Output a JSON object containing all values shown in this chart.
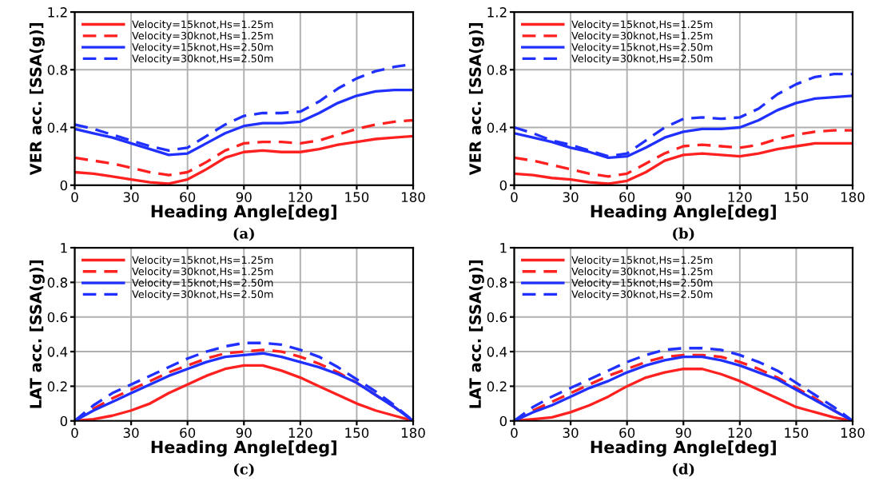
{
  "chart_data": [
    {
      "type": "line",
      "xlabel": "Heading Angle[deg]",
      "ylabel": "VER acc. [SSA(g)]",
      "annotations": [
        "(a)"
      ],
      "xlim": [
        0,
        180
      ],
      "xticks": [
        0,
        30,
        60,
        90,
        120,
        150,
        180
      ],
      "ylim": [
        0,
        1.2
      ],
      "yticks": [
        0,
        0.4,
        0.8,
        1.2
      ],
      "grid": true,
      "legend": "top left",
      "x": [
        0,
        10,
        20,
        30,
        40,
        50,
        60,
        70,
        80,
        90,
        100,
        110,
        120,
        130,
        140,
        150,
        160,
        170,
        180
      ],
      "series": [
        {
          "name": "Velocity=15knot,Hs=1.25m",
          "color": "#ff2020",
          "line_style": "solid",
          "values": [
            0.09,
            0.08,
            0.06,
            0.04,
            0.02,
            0.01,
            0.04,
            0.11,
            0.19,
            0.23,
            0.24,
            0.23,
            0.23,
            0.25,
            0.28,
            0.3,
            0.32,
            0.33,
            0.34
          ]
        },
        {
          "name": "Velocity=30knot,Hs=1.25m",
          "color": "#ff2020",
          "line_style": "dashed",
          "values": [
            0.19,
            0.17,
            0.15,
            0.12,
            0.09,
            0.07,
            0.09,
            0.16,
            0.24,
            0.29,
            0.3,
            0.3,
            0.29,
            0.31,
            0.35,
            0.39,
            0.42,
            0.44,
            0.45
          ]
        },
        {
          "name": "Velocity=15knot,Hs=2.50m",
          "color": "#2030ff",
          "line_style": "solid",
          "values": [
            0.39,
            0.36,
            0.33,
            0.29,
            0.25,
            0.21,
            0.22,
            0.29,
            0.36,
            0.41,
            0.43,
            0.43,
            0.44,
            0.5,
            0.57,
            0.62,
            0.65,
            0.66,
            0.66
          ]
        },
        {
          "name": "Velocity=30knot,Hs=2.50m",
          "color": "#2030ff",
          "line_style": "dashed",
          "values": [
            0.42,
            0.39,
            0.35,
            0.31,
            0.27,
            0.24,
            0.26,
            0.34,
            0.42,
            0.48,
            0.5,
            0.5,
            0.51,
            0.58,
            0.67,
            0.74,
            0.79,
            0.82,
            0.84
          ]
        }
      ]
    },
    {
      "type": "line",
      "xlabel": "Heading Angle[deg]",
      "ylabel": "VER acc. [SSA(g)]",
      "annotations": [
        "(b)"
      ],
      "xlim": [
        0,
        180
      ],
      "xticks": [
        0,
        30,
        60,
        90,
        120,
        150,
        180
      ],
      "ylim": [
        0,
        1.2
      ],
      "yticks": [
        0,
        0.4,
        0.8,
        1.2
      ],
      "grid": true,
      "legend": "top left",
      "x": [
        0,
        10,
        20,
        30,
        40,
        50,
        60,
        70,
        80,
        90,
        100,
        110,
        120,
        130,
        140,
        150,
        160,
        170,
        180
      ],
      "series": [
        {
          "name": "Velocity=15knot,Hs=1.25m",
          "color": "#ff2020",
          "line_style": "solid",
          "values": [
            0.08,
            0.07,
            0.05,
            0.04,
            0.02,
            0.01,
            0.03,
            0.09,
            0.17,
            0.21,
            0.22,
            0.21,
            0.2,
            0.22,
            0.25,
            0.27,
            0.29,
            0.29,
            0.29
          ]
        },
        {
          "name": "Velocity=30knot,Hs=1.25m",
          "color": "#ff2020",
          "line_style": "dashed",
          "values": [
            0.19,
            0.17,
            0.14,
            0.11,
            0.08,
            0.06,
            0.08,
            0.15,
            0.22,
            0.27,
            0.28,
            0.27,
            0.26,
            0.28,
            0.32,
            0.35,
            0.37,
            0.38,
            0.38
          ]
        },
        {
          "name": "Velocity=15knot,Hs=2.50m",
          "color": "#2030ff",
          "line_style": "solid",
          "values": [
            0.36,
            0.33,
            0.3,
            0.26,
            0.23,
            0.19,
            0.2,
            0.26,
            0.33,
            0.37,
            0.39,
            0.39,
            0.4,
            0.45,
            0.52,
            0.57,
            0.6,
            0.61,
            0.62
          ]
        },
        {
          "name": "Velocity=30knot,Hs=2.50m",
          "color": "#2030ff",
          "line_style": "dashed",
          "values": [
            0.4,
            0.36,
            0.31,
            0.28,
            0.24,
            0.2,
            0.22,
            0.31,
            0.4,
            0.46,
            0.47,
            0.46,
            0.47,
            0.53,
            0.63,
            0.7,
            0.75,
            0.77,
            0.77
          ]
        }
      ]
    },
    {
      "type": "line",
      "xlabel": "Heading Angle[deg]",
      "ylabel": "LAT acc. [SSA(g)]",
      "annotations": [
        "(c)"
      ],
      "xlim": [
        0,
        180
      ],
      "xticks": [
        0,
        30,
        60,
        90,
        120,
        150,
        180
      ],
      "ylim": [
        0,
        1
      ],
      "yticks": [
        0,
        0.2,
        0.4,
        0.6,
        0.8,
        1
      ],
      "grid": true,
      "legend": "top left",
      "x": [
        0,
        10,
        20,
        30,
        40,
        50,
        60,
        70,
        80,
        90,
        100,
        110,
        120,
        130,
        140,
        150,
        160,
        170,
        180
      ],
      "series": [
        {
          "name": "Velocity=15knot,Hs=1.25m",
          "color": "#ff2020",
          "line_style": "solid",
          "values": [
            0,
            0.01,
            0.03,
            0.06,
            0.1,
            0.16,
            0.21,
            0.26,
            0.3,
            0.32,
            0.32,
            0.29,
            0.25,
            0.2,
            0.15,
            0.1,
            0.06,
            0.03,
            0
          ]
        },
        {
          "name": "Velocity=30knot,Hs=1.25m",
          "color": "#ff2020",
          "line_style": "dashed",
          "values": [
            0,
            0.07,
            0.13,
            0.18,
            0.23,
            0.28,
            0.32,
            0.36,
            0.39,
            0.4,
            0.41,
            0.4,
            0.37,
            0.33,
            0.28,
            0.22,
            0.15,
            0.08,
            0
          ]
        },
        {
          "name": "Velocity=15knot,Hs=2.50m",
          "color": "#2030ff",
          "line_style": "solid",
          "values": [
            0,
            0.06,
            0.11,
            0.16,
            0.21,
            0.26,
            0.3,
            0.34,
            0.37,
            0.38,
            0.39,
            0.37,
            0.34,
            0.31,
            0.27,
            0.22,
            0.15,
            0.08,
            0
          ]
        },
        {
          "name": "Velocity=30knot,Hs=2.50m",
          "color": "#2030ff",
          "line_style": "dashed",
          "values": [
            0,
            0.09,
            0.16,
            0.21,
            0.26,
            0.31,
            0.36,
            0.4,
            0.43,
            0.45,
            0.45,
            0.44,
            0.41,
            0.37,
            0.31,
            0.24,
            0.17,
            0.09,
            0
          ]
        }
      ]
    },
    {
      "type": "line",
      "xlabel": "Heading Angle[deg]",
      "ylabel": "LAT acc. [SSA(g)]",
      "annotations": [
        "(d)"
      ],
      "xlim": [
        0,
        180
      ],
      "xticks": [
        0,
        30,
        60,
        90,
        120,
        150,
        180
      ],
      "ylim": [
        0,
        1
      ],
      "yticks": [
        0,
        0.2,
        0.4,
        0.6,
        0.8,
        1
      ],
      "grid": true,
      "legend": "top left",
      "x": [
        0,
        10,
        20,
        30,
        40,
        50,
        60,
        70,
        80,
        90,
        100,
        110,
        120,
        130,
        140,
        150,
        160,
        170,
        180
      ],
      "series": [
        {
          "name": "Velocity=15knot,Hs=1.25m",
          "color": "#ff2020",
          "line_style": "solid",
          "values": [
            0,
            0.01,
            0.02,
            0.05,
            0.09,
            0.14,
            0.2,
            0.25,
            0.28,
            0.3,
            0.3,
            0.27,
            0.23,
            0.18,
            0.13,
            0.08,
            0.05,
            0.02,
            0
          ]
        },
        {
          "name": "Velocity=30knot,Hs=1.25m",
          "color": "#ff2020",
          "line_style": "dashed",
          "values": [
            0,
            0.06,
            0.11,
            0.16,
            0.21,
            0.26,
            0.3,
            0.34,
            0.37,
            0.38,
            0.38,
            0.37,
            0.34,
            0.3,
            0.25,
            0.19,
            0.13,
            0.06,
            0
          ]
        },
        {
          "name": "Velocity=15knot,Hs=2.50m",
          "color": "#2030ff",
          "line_style": "solid",
          "values": [
            0,
            0.05,
            0.09,
            0.14,
            0.19,
            0.23,
            0.28,
            0.32,
            0.35,
            0.37,
            0.37,
            0.35,
            0.32,
            0.28,
            0.24,
            0.18,
            0.12,
            0.06,
            0
          ]
        },
        {
          "name": "Velocity=30knot,Hs=2.50m",
          "color": "#2030ff",
          "line_style": "dashed",
          "values": [
            0,
            0.08,
            0.14,
            0.19,
            0.24,
            0.29,
            0.34,
            0.38,
            0.41,
            0.42,
            0.42,
            0.41,
            0.38,
            0.34,
            0.29,
            0.22,
            0.15,
            0.08,
            0
          ]
        }
      ]
    }
  ]
}
